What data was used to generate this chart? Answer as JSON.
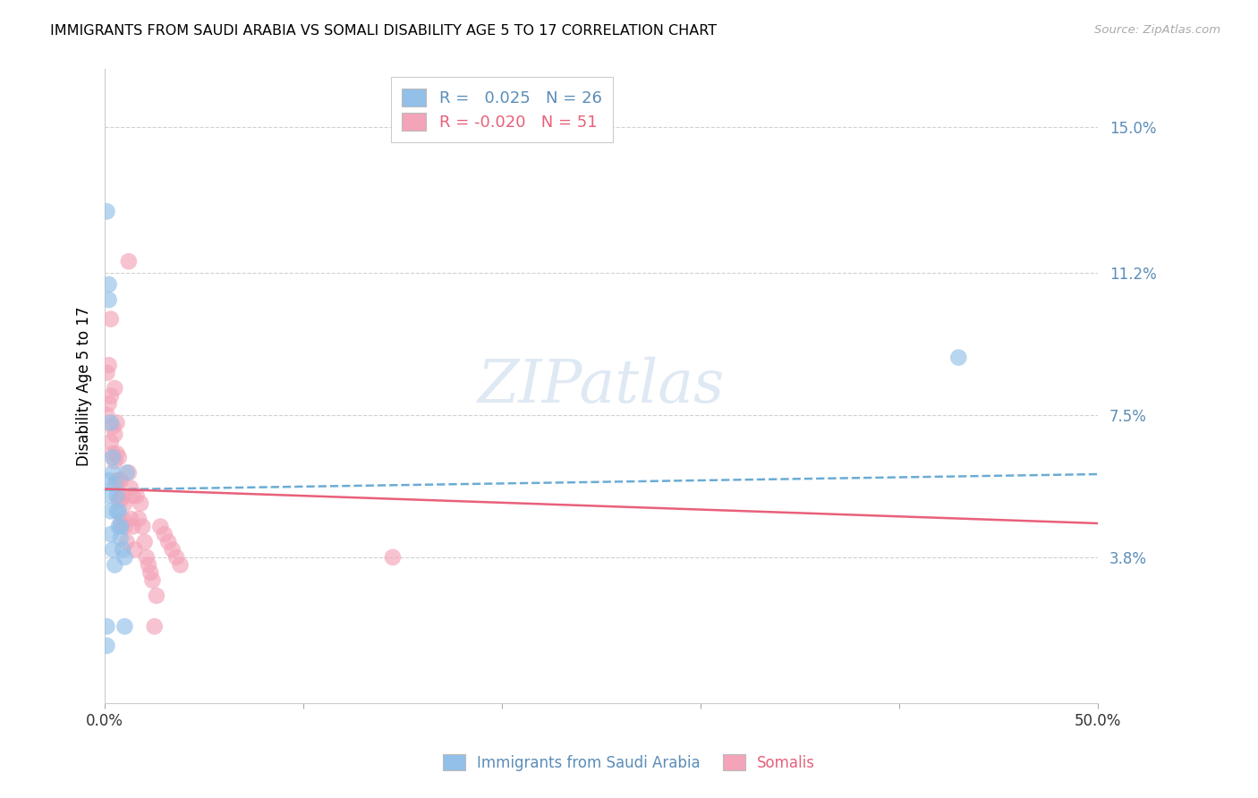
{
  "title": "IMMIGRANTS FROM SAUDI ARABIA VS SOMALI DISABILITY AGE 5 TO 17 CORRELATION CHART",
  "source": "Source: ZipAtlas.com",
  "ylabel": "Disability Age 5 to 17",
  "xlim": [
    0.0,
    0.5
  ],
  "ylim": [
    0.0,
    0.165
  ],
  "ytick_vals": [
    0.038,
    0.075,
    0.112,
    0.15
  ],
  "ytick_labels": [
    "3.8%",
    "7.5%",
    "11.2%",
    "15.0%"
  ],
  "xtick_vals": [
    0.0,
    0.1,
    0.2,
    0.3,
    0.4,
    0.5
  ],
  "xtick_labels": [
    "0.0%",
    "",
    "",
    "",
    "",
    "50.0%"
  ],
  "saudi_color": "#92C0E8",
  "somali_color": "#F4A4B8",
  "trend_saudi_color": "#6BACD4",
  "trend_somali_color": "#E8607A",
  "saudi_R": 0.025,
  "saudi_N": 26,
  "somali_R": -0.02,
  "somali_N": 51,
  "background_color": "#FFFFFF",
  "grid_color": "#CCCCCC",
  "ytick_color": "#5B8DB8",
  "watermark": "ZIPatlas",
  "watermark_color": "#C5D8EC",
  "saudi_x": [
    0.001,
    0.001,
    0.001,
    0.002,
    0.002,
    0.002,
    0.002,
    0.003,
    0.003,
    0.003,
    0.004,
    0.004,
    0.004,
    0.005,
    0.005,
    0.006,
    0.006,
    0.007,
    0.007,
    0.008,
    0.008,
    0.009,
    0.01,
    0.01,
    0.011,
    0.43
  ],
  "saudi_y": [
    0.128,
    0.02,
    0.015,
    0.109,
    0.105,
    0.058,
    0.054,
    0.073,
    0.05,
    0.044,
    0.064,
    0.06,
    0.04,
    0.057,
    0.036,
    0.054,
    0.05,
    0.05,
    0.046,
    0.046,
    0.043,
    0.04,
    0.038,
    0.02,
    0.06,
    0.09
  ],
  "somali_x": [
    0.001,
    0.001,
    0.002,
    0.002,
    0.003,
    0.003,
    0.003,
    0.004,
    0.004,
    0.005,
    0.005,
    0.005,
    0.006,
    0.006,
    0.006,
    0.007,
    0.007,
    0.007,
    0.008,
    0.008,
    0.008,
    0.009,
    0.009,
    0.01,
    0.01,
    0.011,
    0.012,
    0.013,
    0.013,
    0.014,
    0.014,
    0.015,
    0.016,
    0.017,
    0.018,
    0.019,
    0.02,
    0.021,
    0.022,
    0.023,
    0.024,
    0.026,
    0.028,
    0.03,
    0.032,
    0.034,
    0.036,
    0.038,
    0.012,
    0.025,
    0.145
  ],
  "somali_y": [
    0.086,
    0.075,
    0.088,
    0.078,
    0.1,
    0.08,
    0.068,
    0.072,
    0.065,
    0.082,
    0.07,
    0.063,
    0.073,
    0.065,
    0.058,
    0.064,
    0.058,
    0.053,
    0.058,
    0.053,
    0.047,
    0.054,
    0.048,
    0.052,
    0.046,
    0.042,
    0.06,
    0.056,
    0.048,
    0.054,
    0.046,
    0.04,
    0.054,
    0.048,
    0.052,
    0.046,
    0.042,
    0.038,
    0.036,
    0.034,
    0.032,
    0.028,
    0.046,
    0.044,
    0.042,
    0.04,
    0.038,
    0.036,
    0.115,
    0.02,
    0.038
  ],
  "legend_r_saudi": " 0.025",
  "legend_n_saudi": "26",
  "legend_r_somali": "-0.020",
  "legend_n_somali": "51"
}
